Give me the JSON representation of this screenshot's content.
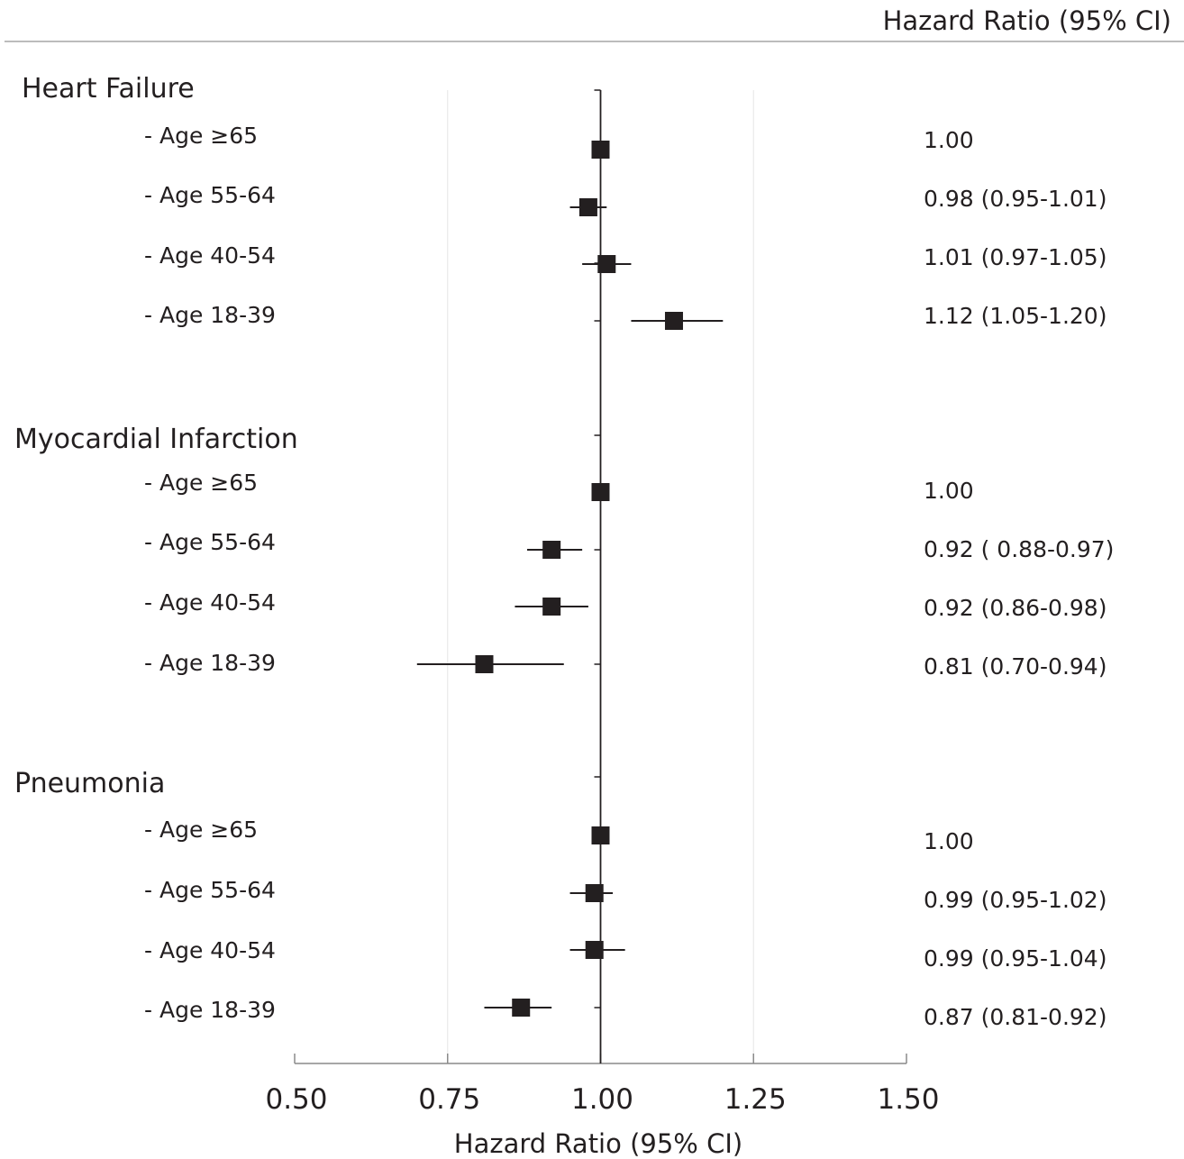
{
  "header": {
    "title": "Hazard Ratio (95% CI)"
  },
  "chart_data": {
    "type": "forest",
    "xlabel": "Hazard Ratio (95% CI)",
    "xlim": [
      0.5,
      1.5
    ],
    "x_ticks": [
      "0.50",
      "0.75",
      "1.00",
      "1.25",
      "1.50"
    ],
    "reference_value": 1.0,
    "grid": true,
    "groups": [
      {
        "name": "Heart Failure",
        "rows": [
          {
            "label": "- Age ≥65",
            "hr": 1.0,
            "lo": null,
            "hi": null,
            "text": "1.00"
          },
          {
            "label": "- Age 55-64",
            "hr": 0.98,
            "lo": 0.95,
            "hi": 1.01,
            "text": "0.98 (0.95-1.01)"
          },
          {
            "label": "- Age 40-54",
            "hr": 1.01,
            "lo": 0.97,
            "hi": 1.05,
            "text": "1.01 (0.97-1.05)"
          },
          {
            "label": "- Age 18-39",
            "hr": 1.12,
            "lo": 1.05,
            "hi": 1.2,
            "text": "1.12 (1.05-1.20)"
          }
        ]
      },
      {
        "name": "Myocardial Infarction",
        "rows": [
          {
            "label": "- Age ≥65",
            "hr": 1.0,
            "lo": null,
            "hi": null,
            "text": "1.00"
          },
          {
            "label": "- Age 55-64",
            "hr": 0.92,
            "lo": 0.88,
            "hi": 0.97,
            "text": "0.92 ( 0.88-0.97)"
          },
          {
            "label": "- Age 40-54",
            "hr": 0.92,
            "lo": 0.86,
            "hi": 0.98,
            "text": "0.92 (0.86-0.98)"
          },
          {
            "label": "- Age 18-39",
            "hr": 0.81,
            "lo": 0.7,
            "hi": 0.94,
            "text": "0.81 (0.70-0.94)"
          }
        ]
      },
      {
        "name": "Pneumonia",
        "rows": [
          {
            "label": "- Age ≥65",
            "hr": 1.0,
            "lo": null,
            "hi": null,
            "text": "1.00"
          },
          {
            "label": "- Age 55-64",
            "hr": 0.99,
            "lo": 0.95,
            "hi": 1.02,
            "text": "0.99 (0.95-1.02)"
          },
          {
            "label": "- Age 40-54",
            "hr": 0.99,
            "lo": 0.95,
            "hi": 1.04,
            "text": "0.99 (0.95-1.04)"
          },
          {
            "label": "- Age 18-39",
            "hr": 0.87,
            "lo": 0.81,
            "hi": 0.92,
            "text": "0.87 (0.81-0.92)"
          }
        ]
      }
    ]
  },
  "colors": {
    "ink": "#231f20",
    "grid": "#e6e6e6",
    "rule": "#a6a6a6"
  }
}
